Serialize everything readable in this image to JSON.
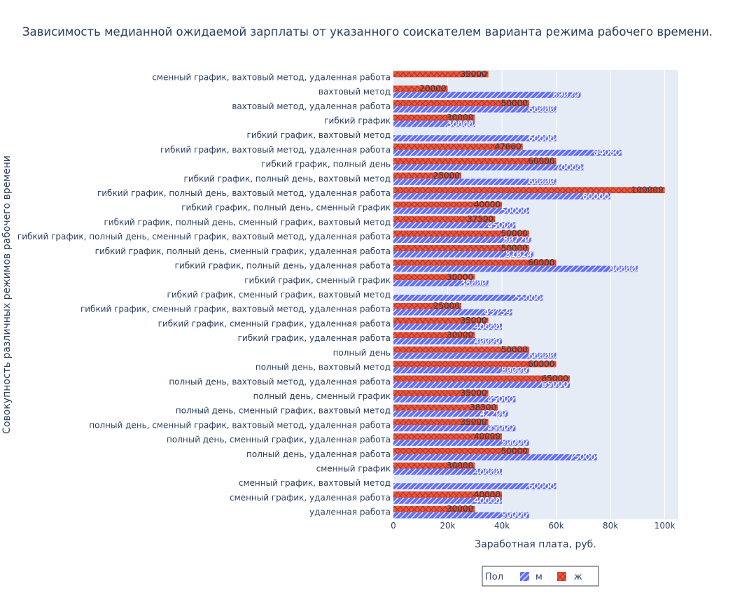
{
  "chart_data": {
    "type": "bar",
    "orientation": "horizontal",
    "barmode": "group",
    "title": "Зависимость медианной ожидаемой зарплаты от указанного соискателем варианта режима рабочего времени.",
    "xlabel": "Заработная плата, руб.",
    "ylabel": "Совокупность различных режимов рабочего времени",
    "xlim": [
      0,
      105000
    ],
    "xticks": [
      "0",
      "20k",
      "40k",
      "60k",
      "80k",
      "100k"
    ],
    "grid": true,
    "legend_title": "Пол",
    "legend_position": "bottom-center",
    "categories": [
      "сменный график, вахтовый метод, удаленная работа",
      "вахтовый метод",
      "вахтовый метод, удаленная работа",
      "гибкий график",
      "гибкий график, вахтовый метод",
      "гибкий график, вахтовый метод, удаленная работа",
      "гибкий график, полный день",
      "гибкий график, полный день, вахтовый метод",
      "гибкий график, полный день, вахтовый метод, удаленная работа",
      "гибкий график, полный день, сменный график",
      "гибкий график, полный день, сменный график, вахтовый метод",
      "гибкий график, полный день, сменный график, вахтовый метод, удаленная работа",
      "гибкий график, полный день, сменный график, удаленная работа",
      "гибкий график, полный день, удаленная работа",
      "гибкий график, сменный график",
      "гибкий график, сменный график, вахтовый метод",
      "гибкий график, сменный график, вахтовый метод, удаленная работа",
      "гибкий график, сменный график, удаленная работа",
      "гибкий график, удаленная работа",
      "полный день",
      "полный день, вахтовый метод",
      "полный день, вахтовый метод, удаленная работа",
      "полный день, сменный график",
      "полный день, сменный график, вахтовый метод",
      "полный день, сменный график, вахтовый метод, удаленная работа",
      "полный день, сменный график, удаленная работа",
      "полный день, удаленная работа",
      "сменный график",
      "сменный график, вахтовый метод",
      "сменный график, удаленная работа",
      "удаленная работа"
    ],
    "series": [
      {
        "name": "ж",
        "color": "#EF553B",
        "pattern": "x",
        "values": [
          35000,
          20000,
          50000,
          30000,
          null,
          47660,
          60000,
          25000,
          100000,
          40000,
          37500,
          50000,
          50000,
          60000,
          30000,
          null,
          25000,
          35000,
          30000,
          50000,
          60000,
          65000,
          35000,
          38500,
          35000,
          40000,
          50000,
          30000,
          null,
          40000,
          30000
        ]
      },
      {
        "name": "м",
        "color": "#636EFA",
        "pattern": "/",
        "values": [
          null,
          69030,
          60000,
          30000,
          60000,
          84080,
          70000,
          60000,
          80000,
          50000,
          45000,
          50720,
          51614,
          90000,
          35000,
          55000,
          43759,
          40000,
          40000,
          60000,
          50000,
          65000,
          45000,
          42200,
          45000,
          50000,
          75000,
          40000,
          60000,
          40000,
          50000
        ]
      }
    ]
  }
}
